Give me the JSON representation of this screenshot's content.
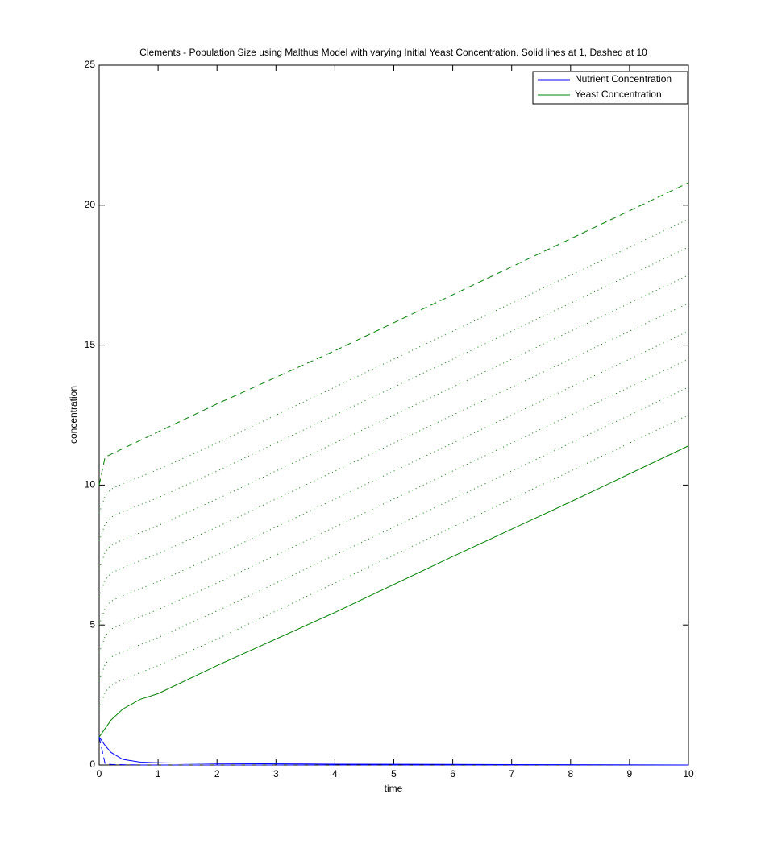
{
  "chart_data": {
    "type": "line",
    "title": "Clements - Population Size using Malthus Model with varying Initial Yeast Concentration. Solid lines at 1, Dashed at 10",
    "x_label": "time",
    "y_label": "concentration",
    "x": [
      0,
      0.1,
      0.2,
      0.4,
      0.7,
      1,
      2,
      4,
      6,
      8,
      10
    ],
    "xlim": [
      0,
      10
    ],
    "xticks": [
      0,
      1,
      2,
      3,
      4,
      5,
      6,
      7,
      8,
      9,
      10
    ],
    "ylim": [
      0,
      25
    ],
    "yticks": [
      0,
      5,
      10,
      15,
      20,
      25
    ],
    "legend": "upper right",
    "series": [
      {
        "name": "Nutrient Concentration",
        "color": "#0000ff",
        "style": "solid",
        "values": [
          1,
          0.7,
          0.45,
          0.2,
          0.1,
          0.08,
          0.05,
          0.03,
          0.02,
          0.01,
          0
        ]
      },
      {
        "name": "Yeast Concentration",
        "color": "#008000",
        "style": "solid",
        "values": [
          1,
          1.3,
          1.6,
          2.0,
          2.35,
          2.55,
          3.55,
          5.45,
          7.45,
          9.4,
          11.4
        ]
      },
      {
        "color": "#008000",
        "style": "dashed",
        "values": [
          10,
          11.0,
          11.1,
          11.3,
          11.6,
          11.9,
          12.9,
          14.8,
          16.8,
          18.8,
          20.8
        ]
      },
      {
        "color": "#0000ff",
        "style": "dashed",
        "values": [
          1,
          0.05,
          0.02,
          0.01,
          0,
          0,
          0,
          0,
          0,
          0,
          0
        ]
      },
      {
        "color": "#008000",
        "style": "dotted",
        "values": [
          2,
          2.6,
          2.85,
          3.05,
          3.3,
          3.55,
          4.5,
          6.5,
          8.5,
          10.5,
          12.5
        ]
      },
      {
        "color": "#008000",
        "style": "dotted",
        "values": [
          3,
          3.6,
          3.85,
          4.05,
          4.3,
          4.55,
          5.5,
          7.5,
          9.5,
          11.5,
          13.5
        ]
      },
      {
        "color": "#008000",
        "style": "dotted",
        "values": [
          4,
          4.6,
          4.85,
          5.05,
          5.3,
          5.55,
          6.5,
          8.5,
          10.5,
          12.5,
          14.5
        ]
      },
      {
        "color": "#008000",
        "style": "dotted",
        "values": [
          5,
          5.6,
          5.85,
          6.05,
          6.3,
          6.55,
          7.5,
          9.5,
          11.5,
          13.5,
          15.5
        ]
      },
      {
        "color": "#008000",
        "style": "dotted",
        "values": [
          6,
          6.6,
          6.85,
          7.05,
          7.3,
          7.55,
          8.5,
          10.5,
          12.5,
          14.5,
          16.5
        ]
      },
      {
        "color": "#008000",
        "style": "dotted",
        "values": [
          7,
          7.6,
          7.85,
          8.05,
          8.3,
          8.55,
          9.5,
          11.5,
          13.5,
          15.5,
          17.5
        ]
      },
      {
        "color": "#008000",
        "style": "dotted",
        "values": [
          8,
          8.6,
          8.85,
          9.05,
          9.3,
          9.55,
          10.5,
          12.5,
          14.5,
          16.5,
          18.5
        ]
      },
      {
        "color": "#008000",
        "style": "dotted",
        "values": [
          9,
          9.6,
          9.85,
          10.05,
          10.3,
          10.55,
          11.5,
          13.5,
          15.5,
          17.5,
          19.5
        ]
      }
    ]
  }
}
